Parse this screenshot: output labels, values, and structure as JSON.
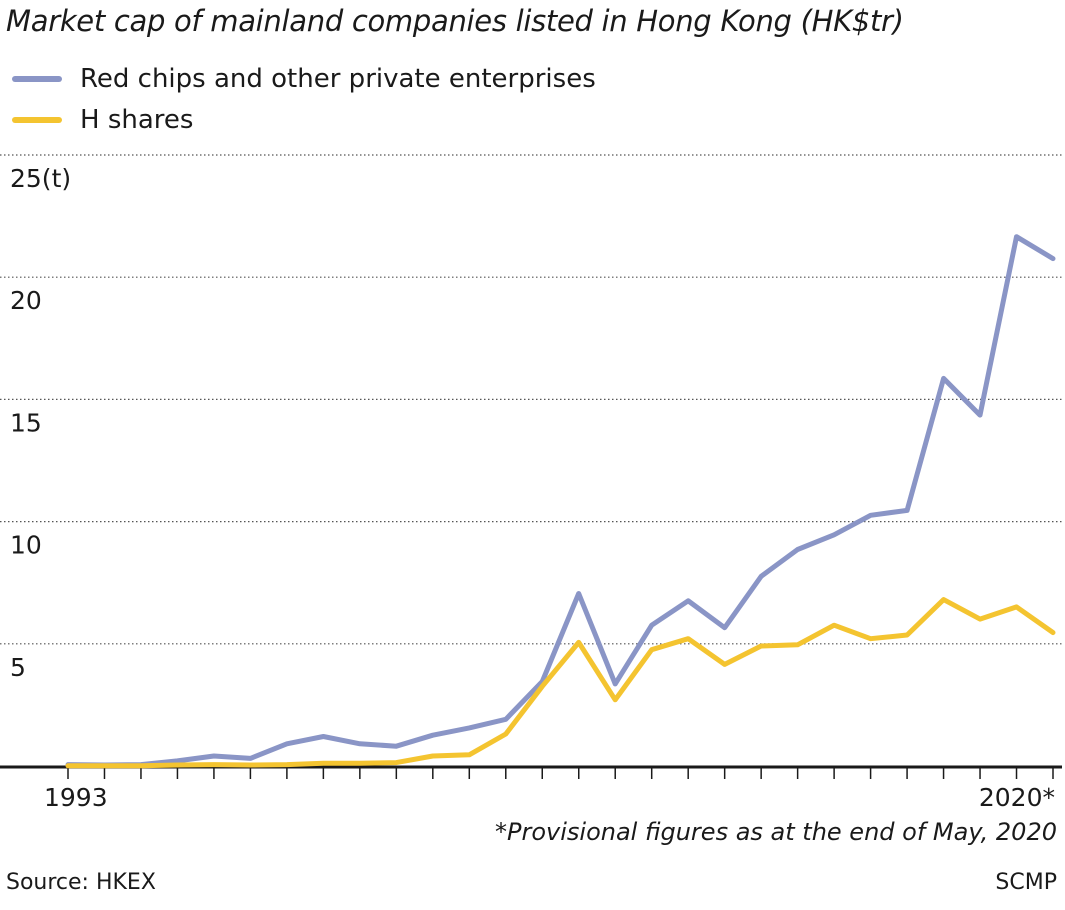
{
  "chart_data": {
    "type": "line",
    "title": "Market cap of mainland companies listed in Hong Kong (HK$tr)",
    "x": [
      1993,
      1994,
      1995,
      1996,
      1997,
      1998,
      1999,
      2000,
      2001,
      2002,
      2003,
      2004,
      2005,
      2006,
      2007,
      2008,
      2009,
      2010,
      2011,
      2012,
      2013,
      2014,
      2015,
      2016,
      2017,
      2018,
      2019,
      "2020*"
    ],
    "x_tick_labels": {
      "first": "1993",
      "last": "2020*"
    },
    "y_tick_labels": [
      "25(t)",
      "20",
      "15",
      "10",
      "5"
    ],
    "ylim": [
      0,
      25
    ],
    "grid": true,
    "legend_position": "top-left",
    "series": [
      {
        "name": "Red chips and other private enterprises",
        "color": "#8a95c6",
        "values": [
          0.1,
          0.08,
          0.1,
          0.25,
          0.45,
          0.35,
          0.95,
          1.25,
          0.95,
          0.85,
          1.3,
          1.6,
          1.95,
          3.5,
          7.1,
          3.4,
          5.8,
          6.8,
          5.7,
          7.8,
          8.9,
          9.5,
          10.3,
          10.5,
          15.9,
          14.4,
          21.7,
          20.8
        ]
      },
      {
        "name": "H shares",
        "color": "#f4c430",
        "values": [
          0.05,
          0.05,
          0.05,
          0.08,
          0.1,
          0.08,
          0.1,
          0.15,
          0.15,
          0.18,
          0.45,
          0.5,
          1.35,
          3.3,
          5.1,
          2.75,
          4.8,
          5.25,
          4.2,
          4.95,
          5.0,
          5.8,
          5.25,
          5.4,
          6.85,
          6.05,
          6.55,
          5.5
        ]
      }
    ]
  },
  "note": "*Provisional figures as at the end of May, 2020",
  "source": "Source: HKEX",
  "brand": "SCMP"
}
